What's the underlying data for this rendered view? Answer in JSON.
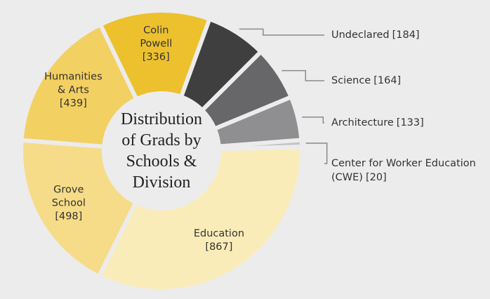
{
  "chart_data": {
    "type": "donut",
    "title": "Distribution of Grads by Schools & Division",
    "categories": [
      "Undeclared",
      "Science",
      "Architecture",
      "Center for Worker Education (CWE)",
      "Education",
      "Grove School",
      "Humanities & Arts",
      "Colin Powell"
    ],
    "values": [
      184,
      164,
      133,
      20,
      867,
      498,
      439,
      336
    ],
    "value_labels": [
      "[184]",
      "[164]",
      "[133]",
      "[20]",
      "[867]",
      "[498]",
      "[439]",
      "[336]"
    ],
    "colors": [
      "#3f3f3f",
      "#67676a",
      "#8f8f91",
      "#c2c2c2",
      "#faecb8",
      "#f6dc88",
      "#f3d062",
      "#edc12e"
    ]
  }
}
